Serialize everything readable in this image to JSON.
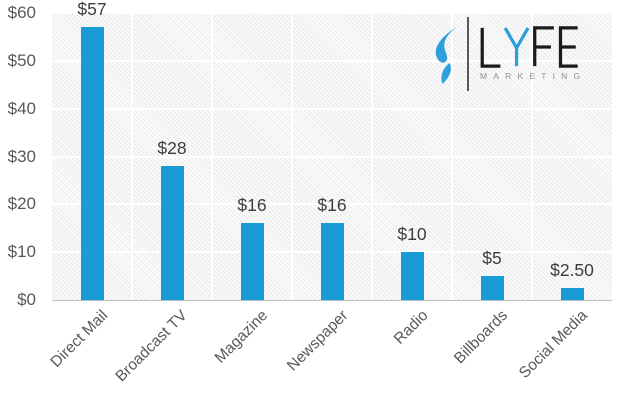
{
  "chart_data": {
    "type": "bar",
    "title": "",
    "xlabel": "",
    "ylabel": "",
    "categories": [
      "Direct Mail",
      "Broadcast TV",
      "Magazine",
      "Newspaper",
      "Radio",
      "Billboards",
      "Social Media"
    ],
    "values": [
      57,
      28,
      16,
      16,
      10,
      5,
      2.5
    ],
    "value_labels": [
      "$57",
      "$28",
      "$16",
      "$16",
      "$10",
      "$5",
      "$2.50"
    ],
    "y_ticks": [
      0,
      10,
      20,
      30,
      40,
      50,
      60
    ],
    "y_tick_labels": [
      "$0",
      "$10",
      "$20",
      "$30",
      "$40",
      "$50",
      "$60"
    ],
    "ylim": [
      0,
      60
    ],
    "grid": "horizontal and vertical white gridlines on hatched plot background",
    "legend_position": "none",
    "bar_color": "#189bd6",
    "x_label_rotation_deg": -45
  },
  "logo": {
    "brand": "LYFE",
    "subtitle": "MARKETING",
    "flame_color": "#2e9fda",
    "letter_color": "#1b1b1b",
    "accent_letter": "Y",
    "accent_color": "#2e9fda"
  },
  "colors": {
    "axis_text": "#595959",
    "value_text": "#3d3d3d",
    "axis_line": "#bdbdbd",
    "gridline": "#ffffff",
    "plot_hatch": "#e9e9e9",
    "background": "#ffffff"
  }
}
